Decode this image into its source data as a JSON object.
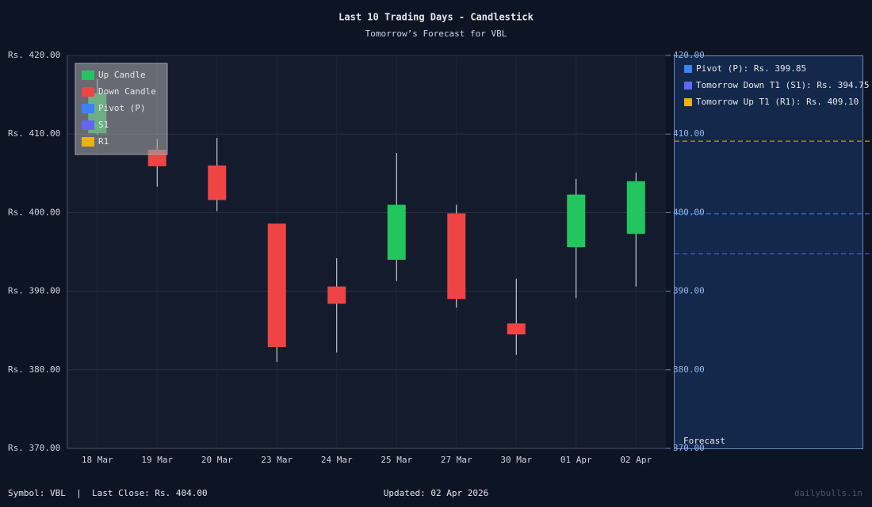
{
  "chart_data": {
    "type": "candlestick",
    "title": "Last 10 Trading Days - Candlestick",
    "subtitle": "Tomorrow’s Forecast for VBL",
    "categories": [
      "18 Mar",
      "19 Mar",
      "20 Mar",
      "23 Mar",
      "24 Mar",
      "25 Mar",
      "27 Mar",
      "30 Mar",
      "01 Apr",
      "02 Apr"
    ],
    "open": [
      410.1,
      408.0,
      406.0,
      398.6,
      390.6,
      394.0,
      399.9,
      385.9,
      395.6,
      397.3
    ],
    "high": [
      417.0,
      409.4,
      409.5,
      398.6,
      394.2,
      407.6,
      401.0,
      391.6,
      404.3,
      405.1
    ],
    "low": [
      409.9,
      403.3,
      400.2,
      381.0,
      382.2,
      391.3,
      387.9,
      381.9,
      389.1,
      390.6
    ],
    "close": [
      415.2,
      405.9,
      401.6,
      382.9,
      388.4,
      401.0,
      389.0,
      384.5,
      402.3,
      404.0
    ],
    "up_color": "#22c55e",
    "down_color": "#ef4444",
    "ylim": [
      370,
      420
    ],
    "yticks": [
      {
        "value": 370,
        "label": "Rs. 370.00"
      },
      {
        "value": 380,
        "label": "Rs. 380.00"
      },
      {
        "value": 390,
        "label": "Rs. 390.00"
      },
      {
        "value": 400,
        "label": "Rs. 400.00"
      },
      {
        "value": 410,
        "label": "Rs. 410.00"
      },
      {
        "value": 420,
        "label": "Rs. 420.00"
      }
    ],
    "y2lim": [
      370,
      420
    ],
    "y2ticks": [
      {
        "value": 370,
        "label": "370.00"
      },
      {
        "value": 380,
        "label": "380.00"
      },
      {
        "value": 390,
        "label": "390.00"
      },
      {
        "value": 400,
        "label": "400.00"
      },
      {
        "value": 410,
        "label": "410.00"
      },
      {
        "value": 420,
        "label": "420.00"
      }
    ],
    "grid": true,
    "legend": [
      {
        "name": "Up Candle",
        "color": "#22c55e"
      },
      {
        "name": "Down Candle",
        "color": "#ef4444"
      },
      {
        "name": "Pivot (P)",
        "color": "#3b82f6"
      },
      {
        "name": "S1",
        "color": "#6366f1"
      },
      {
        "name": "R1",
        "color": "#eab308"
      }
    ],
    "legend_position": "upper left",
    "forecast_label": "Forecast",
    "levels": [
      {
        "label": "Pivot (P): Rs. 399.85",
        "value": 399.85,
        "color": "#3b82f6"
      },
      {
        "label": "Tomorrow Down T1 (S1): Rs. 394.75",
        "value": 394.75,
        "color": "#6366f1"
      },
      {
        "label": "Tomorrow Up T1 (R1): Rs. 409.10",
        "value": 409.1,
        "color": "#eab308"
      }
    ]
  },
  "footer": {
    "symbol": "Symbol: VBL  |  Last Close: Rs. 404.00",
    "updated": "Updated: 02 Apr 2026",
    "brand": "dailybulls.in"
  }
}
